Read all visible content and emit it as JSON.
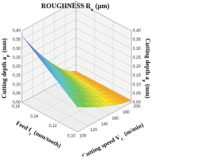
{
  "chart_data": {
    "type": "surface3d",
    "title": {
      "text": "ROUGHNESS R",
      "sub": "a",
      "unit": "(µm)"
    },
    "x_label": {
      "text": "Feed  f",
      "sub": "z",
      "unit": "(mm/tooth)"
    },
    "y_label": {
      "text": "Cutting speed  V",
      "sub": "C",
      "unit": "(m/min)"
    },
    "z_label": {
      "text": "Cutting depth  a",
      "sub": "p",
      "unit": "(mm)"
    },
    "xlim": [
      0.1,
      0.16
    ],
    "xticks": [
      {
        "value": 0.1,
        "label": "0,10"
      },
      {
        "value": 0.12,
        "label": "0,12"
      },
      {
        "value": 0.14,
        "label": "0,14"
      },
      {
        "value": 0.16,
        "label": "0,16"
      }
    ],
    "ylim": [
      100,
      200
    ],
    "yticks": [
      100,
      120,
      140,
      160,
      180,
      200
    ],
    "zlim": [
      0,
      0.4
    ],
    "zticks": [
      {
        "value": 0,
        "label": "0,00"
      },
      {
        "value": 0.05,
        "label": "0,05"
      },
      {
        "value": 0.1,
        "label": "0,10"
      },
      {
        "value": 0.15,
        "label": "0,15"
      },
      {
        "value": 0.2,
        "label": "0,20"
      },
      {
        "value": 0.25,
        "label": "0,25"
      },
      {
        "value": 0.3,
        "label": "0,30"
      },
      {
        "value": 0.35,
        "label": "0,35"
      },
      {
        "value": 0.4,
        "label": "0,40"
      }
    ],
    "grid": true
  }
}
